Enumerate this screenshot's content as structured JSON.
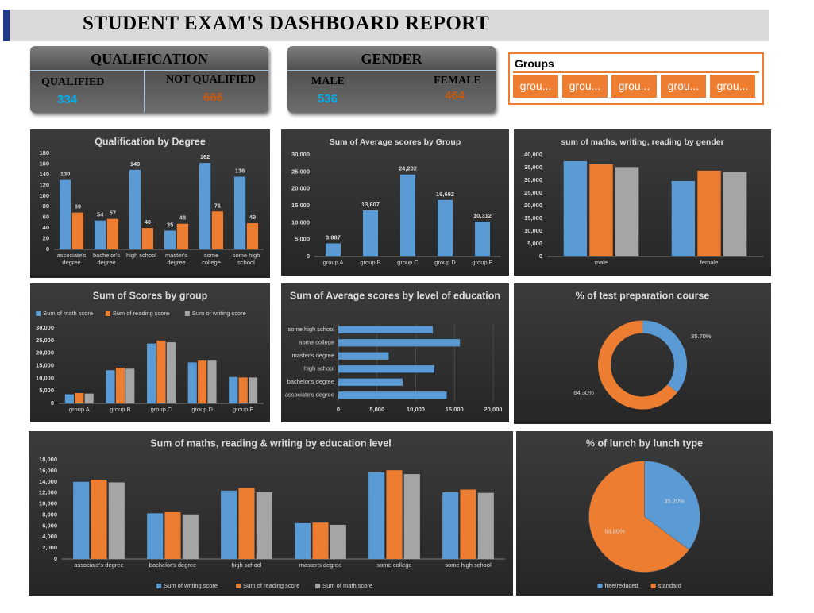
{
  "header": {
    "title": "STUDENT EXAM'S DASHBOARD REPORT"
  },
  "qualification": {
    "title": "QUALIFICATION",
    "items": [
      {
        "label": "QUALIFIED",
        "value": 334
      },
      {
        "label": "NOT QUALIFIED",
        "value": 666
      }
    ]
  },
  "gender": {
    "title": "GENDER",
    "items": [
      {
        "label": "MALE",
        "value": 536
      },
      {
        "label": "FEMALE",
        "value": 464
      }
    ]
  },
  "groups_slicer": {
    "title": "Groups",
    "items": [
      "grou...",
      "grou...",
      "grou...",
      "grou...",
      "grou..."
    ]
  },
  "chart_data": [
    {
      "type": "bar",
      "title": "Qualification by Degree",
      "categories": [
        "associate's degree",
        "bachelor's degree",
        "high school",
        "master's degree",
        "some college",
        "some high school"
      ],
      "series": [
        {
          "color": "#5b9bd5",
          "values": [
            130,
            54,
            149,
            35,
            162,
            136
          ]
        },
        {
          "color": "#ed7d31",
          "values": [
            69,
            57,
            40,
            48,
            71,
            49
          ]
        }
      ],
      "ylim": [
        0,
        180
      ],
      "yticks": [
        0,
        20,
        40,
        60,
        80,
        100,
        120,
        140,
        160,
        180
      ],
      "data_labels": true
    },
    {
      "type": "bar",
      "title": "Sum of Average scores by Group",
      "categories": [
        "group A",
        "group B",
        "group C",
        "group D",
        "group E"
      ],
      "values": [
        3887,
        13607,
        24202,
        16692,
        10312
      ],
      "value_labels": [
        "3,887",
        "13,607",
        "24,202",
        "16,692",
        "10,312"
      ],
      "color": "#5b9bd5",
      "ylim": [
        0,
        30000
      ],
      "yticks": [
        0,
        {
          "value": 5000,
          "label": "5,000"
        },
        {
          "value": 10000,
          "label": "10,000"
        },
        {
          "value": 15000,
          "label": "15,000"
        },
        {
          "value": 20000,
          "label": "20,000"
        },
        {
          "value": 25000,
          "label": "25,000"
        },
        {
          "value": 30000,
          "label": "30,000"
        }
      ]
    },
    {
      "type": "bar",
      "title": "sum of maths, writing, reading by gender",
      "categories": [
        "male",
        "female"
      ],
      "series": [
        {
          "color": "#5b9bd5",
          "values": [
            37500,
            29700
          ]
        },
        {
          "color": "#ed7d31",
          "values": [
            36300,
            33800
          ]
        },
        {
          "color": "#a5a5a5",
          "values": [
            35200,
            33300
          ]
        }
      ],
      "ylim": [
        0,
        40000
      ],
      "yticks": [
        0,
        {
          "value": 5000,
          "label": "5,000"
        },
        {
          "value": 10000,
          "label": "10,000"
        },
        {
          "value": 15000,
          "label": "15,000"
        },
        {
          "value": 20000,
          "label": "20,000"
        },
        {
          "value": 25000,
          "label": "25,000"
        },
        {
          "value": 30000,
          "label": "30,000"
        },
        {
          "value": 35000,
          "label": "35,000"
        },
        {
          "value": 40000,
          "label": "40,000"
        }
      ]
    },
    {
      "type": "bar",
      "title": "Sum of Scores by group",
      "categories": [
        "group A",
        "group B",
        "group C",
        "group D",
        "group E"
      ],
      "legend": "top",
      "series": [
        {
          "name": "Sum of math score",
          "color": "#5b9bd5",
          "values": [
            3600,
            13200,
            23800,
            16300,
            10500
          ]
        },
        {
          "name": "Sum of reading score",
          "color": "#ed7d31",
          "values": [
            4100,
            14200,
            25000,
            17000,
            10300
          ]
        },
        {
          "name": "Sum of writing score",
          "color": "#a5a5a5",
          "values": [
            3900,
            13800,
            24300,
            17000,
            10300
          ]
        }
      ],
      "ylim": [
        0,
        30000
      ],
      "yticks": [
        0,
        {
          "value": 5000,
          "label": "5,000"
        },
        {
          "value": 10000,
          "label": "10,000"
        },
        {
          "value": 15000,
          "label": "15,000"
        },
        {
          "value": 20000,
          "label": "20,000"
        },
        {
          "value": 25000,
          "label": "25,000"
        },
        {
          "value": 30000,
          "label": "30,000"
        }
      ]
    },
    {
      "type": "barh",
      "title": "Sum of Average scores by level of education",
      "categories": [
        "associate's degree",
        "bachelor's degree",
        "high school",
        "master's degree",
        "some college",
        "some high school"
      ],
      "values": [
        14000,
        8300,
        12400,
        6500,
        15700,
        12200
      ],
      "color": "#5b9bd5",
      "grid": true,
      "xlim": [
        0,
        20000
      ],
      "xticks": [
        0,
        {
          "value": 5000,
          "label": "5,000"
        },
        {
          "value": 10000,
          "label": "10,000"
        },
        {
          "value": 15000,
          "label": "15,000"
        },
        {
          "value": 20000,
          "label": "20,000"
        }
      ]
    },
    {
      "type": "donut",
      "title": "% of test preparation course",
      "values": [
        35.7,
        64.3
      ],
      "value_labels": [
        "35.70%",
        "64.30%"
      ],
      "colors": [
        "#5b9bd5",
        "#ed7d31"
      ]
    },
    {
      "type": "bar",
      "title": "Sum of maths, reading & writing by education level",
      "categories": [
        "associate's degree",
        "bachelor's degree",
        "high school",
        "master's degree",
        "some college",
        "some high school"
      ],
      "legend": "bottom",
      "series": [
        {
          "name": "Sum of writing score",
          "color": "#5b9bd5",
          "values": [
            14000,
            8300,
            12400,
            6500,
            15700,
            12100
          ]
        },
        {
          "name": "Sum of reading score",
          "color": "#ed7d31",
          "values": [
            14400,
            8500,
            12900,
            6600,
            16100,
            12600
          ]
        },
        {
          "name": "Sum of math score",
          "color": "#a5a5a5",
          "values": [
            13900,
            8100,
            12100,
            6200,
            15400,
            12000
          ]
        }
      ],
      "ylim": [
        0,
        18000
      ],
      "yticks": [
        0,
        {
          "value": 2000,
          "label": "2,000"
        },
        {
          "value": 4000,
          "label": "4,000"
        },
        {
          "value": 6000,
          "label": "6,000"
        },
        {
          "value": 8000,
          "label": "8,000"
        },
        {
          "value": 10000,
          "label": "10,000"
        },
        {
          "value": 12000,
          "label": "12,000"
        },
        {
          "value": 14000,
          "label": "14,000"
        },
        {
          "value": 16000,
          "label": "16,000"
        },
        {
          "value": 18000,
          "label": "18,000"
        }
      ]
    },
    {
      "type": "pie",
      "title": "% of lunch by lunch type",
      "categories": [
        "free/reduced",
        "standard"
      ],
      "values": [
        35.2,
        64.8
      ],
      "value_labels": [
        "35.20%",
        "64.80%"
      ],
      "colors": [
        "#5b9bd5",
        "#ed7d31"
      ],
      "legend": "bottom"
    }
  ]
}
